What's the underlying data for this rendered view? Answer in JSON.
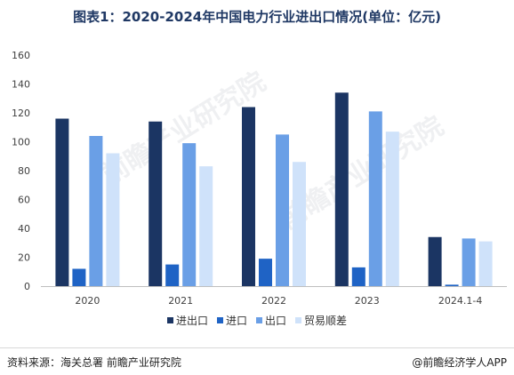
{
  "title": "图表1：2020-2024年中国电力行业进出口情况(单位：亿元)",
  "footer": {
    "source": "资料来源：海关总署 前瞻产业研究院",
    "brand": "@前瞻经济学人APP"
  },
  "watermark": "前瞻产业研究院",
  "colors": {
    "total": "#1b3563",
    "import": "#1f63c5",
    "export": "#6a9fe6",
    "balance": "#cfe2fa",
    "axis": "#bfbfbf"
  },
  "chart_data": {
    "type": "bar",
    "categories": [
      "2020",
      "2021",
      "2022",
      "2023",
      "2024.1-4"
    ],
    "series": [
      {
        "name": "进出口",
        "values": [
          116,
          114,
          124,
          134,
          34
        ]
      },
      {
        "name": "进口",
        "values": [
          12,
          15,
          19,
          13,
          1
        ]
      },
      {
        "name": "出口",
        "values": [
          104,
          99,
          105,
          121,
          33
        ]
      },
      {
        "name": "贸易顺差",
        "values": [
          92,
          83,
          86,
          107,
          31
        ]
      }
    ],
    "ylim": [
      0,
      160
    ],
    "yticks": [
      0,
      20,
      40,
      60,
      80,
      100,
      120,
      140,
      160
    ],
    "grid": false,
    "legend_position": "bottom"
  }
}
